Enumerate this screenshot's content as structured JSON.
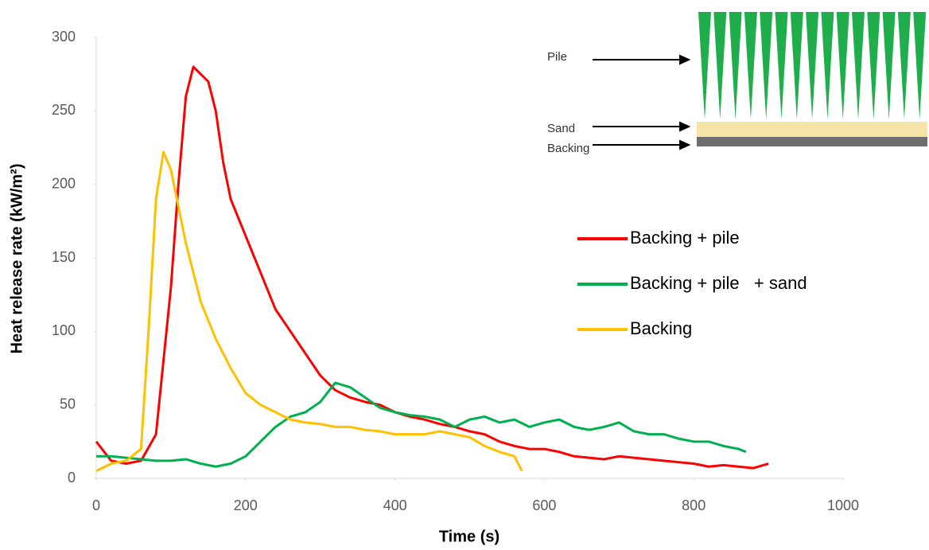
{
  "chart_data": {
    "type": "line",
    "x_label": "Time (s)",
    "y_label": "Heat release rate (kW/m²)",
    "xlim": [
      0,
      1000
    ],
    "xticks": [
      0,
      200,
      400,
      600,
      800,
      1000
    ],
    "ylim": [
      0,
      300
    ],
    "yticks": [
      0,
      50,
      100,
      150,
      200,
      250,
      300
    ],
    "grid": false,
    "legend": "right",
    "annotations": [
      "Pile",
      "Sand",
      "Backing"
    ],
    "series": [
      {
        "name": "Backing + pile",
        "color": "#ff0000",
        "x": [
          0,
          20,
          40,
          60,
          80,
          100,
          110,
          120,
          130,
          140,
          150,
          160,
          170,
          180,
          200,
          220,
          240,
          260,
          280,
          300,
          320,
          340,
          360,
          380,
          400,
          420,
          440,
          460,
          480,
          500,
          520,
          540,
          560,
          580,
          600,
          620,
          640,
          660,
          680,
          700,
          720,
          740,
          760,
          780,
          800,
          820,
          840,
          860,
          880,
          900
        ],
        "values": [
          25,
          12,
          10,
          12,
          30,
          130,
          200,
          260,
          280,
          275,
          270,
          250,
          215,
          190,
          165,
          140,
          115,
          100,
          85,
          70,
          60,
          55,
          52,
          50,
          45,
          42,
          40,
          37,
          35,
          32,
          30,
          25,
          22,
          20,
          20,
          18,
          15,
          14,
          13,
          15,
          14,
          13,
          12,
          11,
          10,
          8,
          9,
          8,
          7,
          10
        ]
      },
      {
        "name": "Backing + pile   + sand",
        "color": "#00b050",
        "x": [
          0,
          20,
          40,
          60,
          80,
          100,
          120,
          140,
          160,
          180,
          200,
          220,
          240,
          260,
          280,
          300,
          320,
          340,
          360,
          380,
          400,
          420,
          440,
          460,
          480,
          500,
          520,
          540,
          560,
          580,
          600,
          620,
          640,
          660,
          680,
          700,
          720,
          740,
          760,
          780,
          800,
          820,
          840,
          860,
          870
        ],
        "values": [
          15,
          15,
          14,
          13,
          12,
          12,
          13,
          10,
          8,
          10,
          15,
          25,
          35,
          42,
          45,
          52,
          65,
          62,
          55,
          48,
          45,
          43,
          42,
          40,
          35,
          40,
          42,
          38,
          40,
          35,
          38,
          40,
          35,
          33,
          35,
          38,
          32,
          30,
          30,
          27,
          25,
          25,
          22,
          20,
          18
        ]
      },
      {
        "name": "Backing",
        "color": "#ffc000",
        "x": [
          0,
          20,
          40,
          60,
          70,
          80,
          90,
          100,
          110,
          120,
          140,
          160,
          180,
          200,
          220,
          240,
          260,
          280,
          300,
          320,
          340,
          360,
          380,
          400,
          420,
          440,
          460,
          480,
          500,
          520,
          540,
          560,
          570
        ],
        "values": [
          5,
          10,
          12,
          20,
          100,
          190,
          222,
          210,
          185,
          160,
          120,
          95,
          75,
          58,
          50,
          45,
          40,
          38,
          37,
          35,
          35,
          33,
          32,
          30,
          30,
          30,
          32,
          30,
          28,
          22,
          18,
          15,
          5
        ]
      }
    ]
  }
}
